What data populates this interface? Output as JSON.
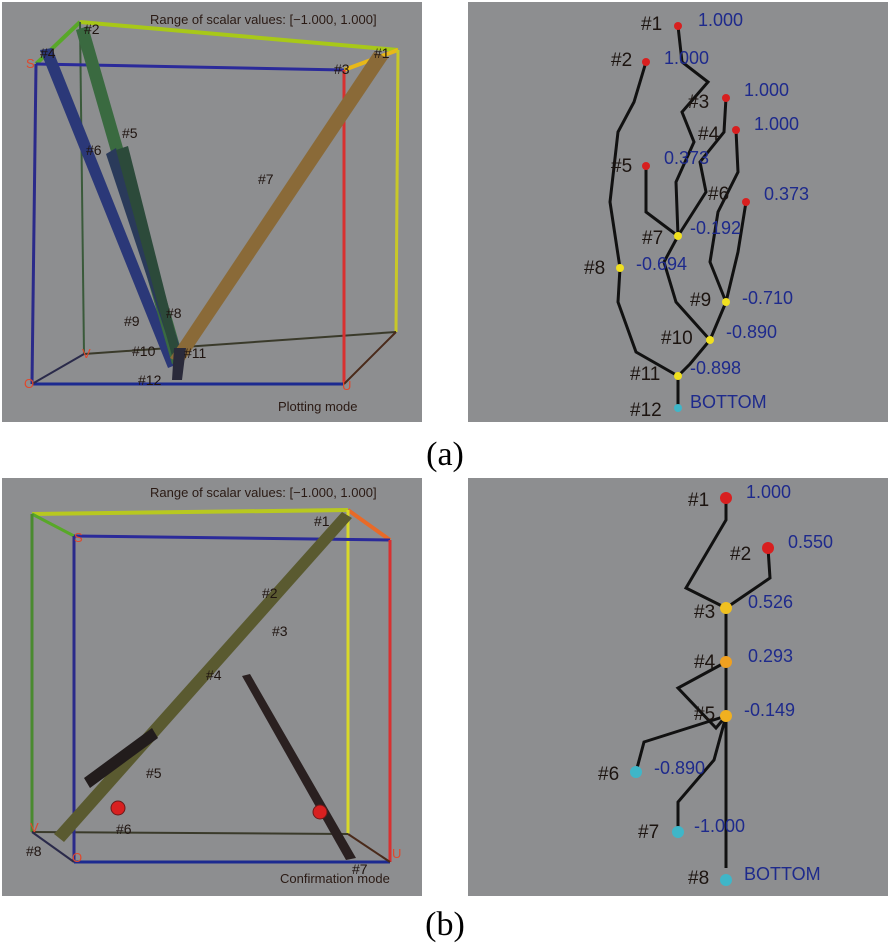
{
  "figure": {
    "caption_a": "(a)",
    "caption_b": "(b)",
    "range_text": "Range of scalar values: [−1.000,  1.000]",
    "mode_a": "Plotting mode",
    "mode_b": "Confirmation mode",
    "axis_labels": {
      "s": "S",
      "v": "V",
      "o": "O",
      "u": "U"
    }
  },
  "panel_a_cube": {
    "labels": [
      "#1",
      "#2",
      "#3",
      "#4",
      "#5",
      "#6",
      "#7",
      "#8",
      "#9",
      "#10",
      "#11",
      "#12"
    ]
  },
  "panel_a_tree": {
    "nodes": [
      {
        "id": "#1",
        "value": "1.000",
        "type": "max"
      },
      {
        "id": "#2",
        "value": "1.000",
        "type": "max"
      },
      {
        "id": "#3",
        "value": "1.000",
        "type": "max"
      },
      {
        "id": "#4",
        "value": "1.000",
        "type": "max"
      },
      {
        "id": "#5",
        "value": "0.373",
        "type": "max"
      },
      {
        "id": "#6",
        "value": "0.373",
        "type": "max"
      },
      {
        "id": "#7",
        "value": "-0.192",
        "type": "saddle"
      },
      {
        "id": "#8",
        "value": "-0.694",
        "type": "saddle"
      },
      {
        "id": "#9",
        "value": "-0.710",
        "type": "saddle"
      },
      {
        "id": "#10",
        "value": "-0.890",
        "type": "saddle"
      },
      {
        "id": "#11",
        "value": "-0.898",
        "type": "saddle"
      },
      {
        "id": "#12",
        "value": "BOTTOM",
        "type": "min"
      }
    ]
  },
  "panel_b_cube": {
    "labels": [
      "#1",
      "#2",
      "#3",
      "#4",
      "#5",
      "#6",
      "#7",
      "#8"
    ]
  },
  "panel_b_tree": {
    "nodes": [
      {
        "id": "#1",
        "value": "1.000",
        "type": "max"
      },
      {
        "id": "#2",
        "value": "0.550",
        "type": "max"
      },
      {
        "id": "#3",
        "value": "0.526",
        "type": "saddle"
      },
      {
        "id": "#4",
        "value": "0.293",
        "type": "saddle"
      },
      {
        "id": "#5",
        "value": "-0.149",
        "type": "saddle"
      },
      {
        "id": "#6",
        "value": "-0.890",
        "type": "min"
      },
      {
        "id": "#7",
        "value": "-1.000",
        "type": "min"
      },
      {
        "id": "#8",
        "value": "BOTTOM",
        "type": "min"
      }
    ]
  },
  "colors": {
    "panel_bg": "#8d8e90",
    "max_node": "#d81f1f",
    "saddle_node": "#f0e020",
    "min_node": "#3fb6c8",
    "value_text": "#1e2a8c"
  }
}
